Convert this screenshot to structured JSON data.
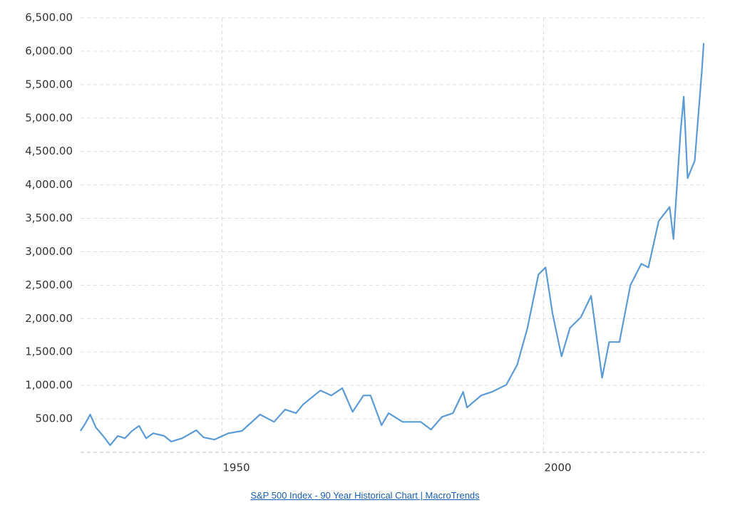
{
  "chart_data": {
    "type": "line",
    "footer": "S&P 500 Index - 90 Year Historical Chart | MacroTrends",
    "x": [
      1928,
      1928.7,
      1929.5,
      1930.4,
      1931.5,
      1932.6,
      1933.8,
      1934.9,
      1936,
      1937.1,
      1938.2,
      1939.3,
      1941,
      1942.1,
      1943.8,
      1946,
      1947.1,
      1948.8,
      1951,
      1953.1,
      1955.9,
      1958.1,
      1959.8,
      1961.5,
      1962.6,
      1965.3,
      1967,
      1968.7,
      1970.3,
      1972,
      1973.1,
      1974.8,
      1975.9,
      1978.1,
      1980.9,
      1982.5,
      1984.2,
      1985.9,
      1987.5,
      1988.1,
      1990.3,
      1992,
      1994.2,
      1995.9,
      1997.5,
      1999.2,
      2000.3,
      2001.4,
      2002.8,
      2004.1,
      2005.8,
      2007.4,
      2009.1,
      2010.2,
      2011.8,
      2013.5,
      2015.2,
      2016.3,
      2017.9,
      2019.6,
      2020.2,
      2021.3,
      2021.8,
      2022.4,
      2023.5,
      2024.6,
      2024.9
    ],
    "series": [
      {
        "color": "#5b9bd5",
        "values": [
          320,
          425,
          565,
          370,
          245,
          105,
          245,
          210,
          320,
          395,
          210,
          285,
          245,
          160,
          210,
          330,
          225,
          190,
          285,
          320,
          565,
          455,
          640,
          585,
          715,
          925,
          850,
          960,
          605,
          850,
          850,
          405,
          585,
          455,
          455,
          340,
          530,
          585,
          905,
          670,
          850,
          905,
          1010,
          1310,
          1860,
          2660,
          2765,
          2075,
          1435,
          1860,
          2020,
          2340,
          1115,
          1650,
          1650,
          2500,
          2820,
          2765,
          3460,
          3670,
          3190,
          4790,
          5320,
          4100,
          4360,
          5690,
          6120
        ]
      }
    ],
    "xlim": [
      1928,
      2025
    ],
    "xticks": [
      1950,
      2000
    ],
    "ylim": [
      0,
      6500
    ],
    "yticks": [
      {
        "value": 500,
        "label": "500.00"
      },
      {
        "value": 1000,
        "label": "1,000.00"
      },
      {
        "value": 1500,
        "label": "1,500.00"
      },
      {
        "value": 2000,
        "label": "2,000.00"
      },
      {
        "value": 2500,
        "label": "2,500.00"
      },
      {
        "value": 3000,
        "label": "3,000.00"
      },
      {
        "value": 3500,
        "label": "3,500.00"
      },
      {
        "value": 4000,
        "label": "4,000.00"
      },
      {
        "value": 4500,
        "label": "4,500.00"
      },
      {
        "value": 5000,
        "label": "5,000.00"
      },
      {
        "value": 5500,
        "label": "5,500.00"
      },
      {
        "value": 6000,
        "label": "6,000.00"
      },
      {
        "value": 6500,
        "label": "6,500.00"
      }
    ],
    "grid": true
  }
}
